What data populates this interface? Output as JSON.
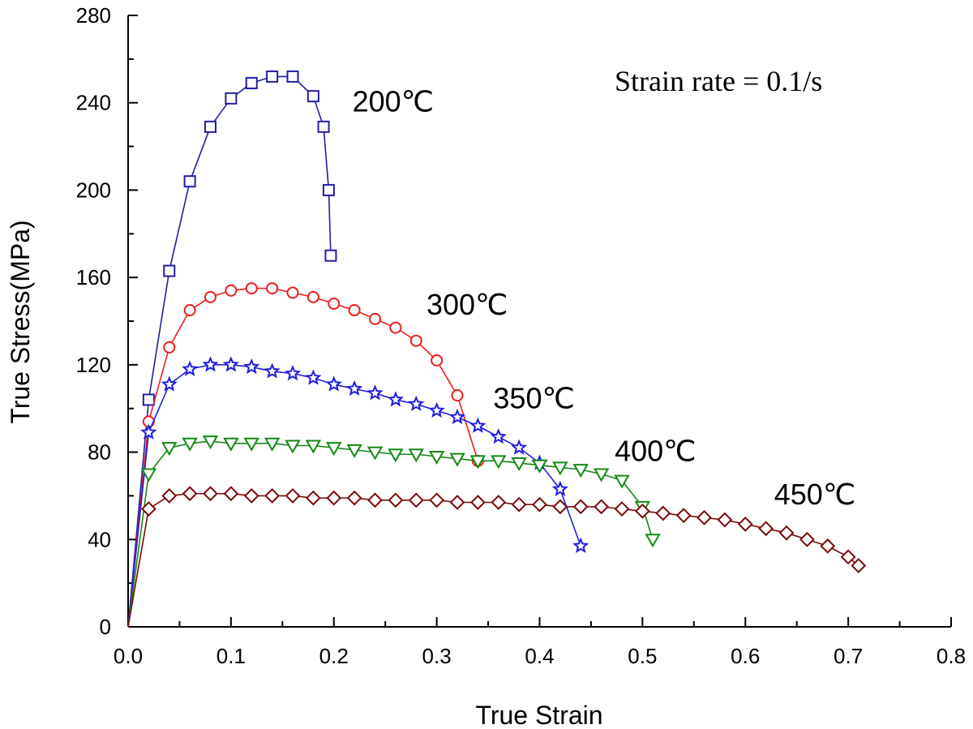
{
  "chart_data": {
    "type": "line",
    "title": "",
    "xlabel": "True Strain",
    "ylabel": "True Stress(MPa)",
    "xlim": [
      0.0,
      0.8
    ],
    "ylim": [
      0,
      280
    ],
    "x_ticks": [
      "0.0",
      "0.1",
      "0.2",
      "0.3",
      "0.4",
      "0.5",
      "0.6",
      "0.7",
      "0.8"
    ],
    "y_ticks": [
      "0",
      "40",
      "80",
      "120",
      "160",
      "200",
      "240",
      "280"
    ],
    "grid": false,
    "annotation": "Strain rate = 0.1/s",
    "series": [
      {
        "name": "200℃",
        "color": "#1f1fa0",
        "marker": "square",
        "x": [
          0.0,
          0.02,
          0.04,
          0.06,
          0.08,
          0.1,
          0.12,
          0.14,
          0.16,
          0.18,
          0.19,
          0.195,
          0.197
        ],
        "y": [
          0,
          104,
          163,
          204,
          229,
          242,
          249,
          252,
          252,
          243,
          229,
          200,
          170
        ]
      },
      {
        "name": "300℃",
        "color": "#ee1c1c",
        "marker": "circle",
        "x": [
          0.0,
          0.02,
          0.04,
          0.06,
          0.08,
          0.1,
          0.12,
          0.14,
          0.16,
          0.18,
          0.2,
          0.22,
          0.24,
          0.26,
          0.28,
          0.3,
          0.32,
          0.34
        ],
        "y": [
          0,
          94,
          128,
          145,
          151,
          154,
          155,
          155,
          153,
          151,
          148,
          145,
          141,
          137,
          131,
          122,
          106,
          76
        ]
      },
      {
        "name": "350℃",
        "color": "#1e1ee0",
        "marker": "star",
        "x": [
          0.0,
          0.02,
          0.04,
          0.06,
          0.08,
          0.1,
          0.12,
          0.14,
          0.16,
          0.18,
          0.2,
          0.22,
          0.24,
          0.26,
          0.28,
          0.3,
          0.32,
          0.34,
          0.36,
          0.38,
          0.4,
          0.42,
          0.44
        ],
        "y": [
          0,
          89,
          111,
          118,
          120,
          120,
          119,
          117,
          116,
          114,
          111,
          109,
          107,
          104,
          102,
          99,
          96,
          92,
          87,
          82,
          75,
          63,
          37
        ]
      },
      {
        "name": "400℃",
        "color": "#138a13",
        "marker": "triangle-down",
        "x": [
          0.0,
          0.02,
          0.04,
          0.06,
          0.08,
          0.1,
          0.12,
          0.14,
          0.16,
          0.18,
          0.2,
          0.22,
          0.24,
          0.26,
          0.28,
          0.3,
          0.32,
          0.34,
          0.36,
          0.38,
          0.4,
          0.42,
          0.44,
          0.46,
          0.48,
          0.5,
          0.51
        ],
        "y": [
          0,
          70,
          82,
          84,
          85,
          84,
          84,
          84,
          83,
          83,
          82,
          81,
          80,
          79,
          79,
          78,
          77,
          76,
          76,
          75,
          74,
          73,
          72,
          70,
          67,
          55,
          40
        ]
      },
      {
        "name": "450℃",
        "color": "#7a0a0a",
        "marker": "diamond",
        "x": [
          0.0,
          0.02,
          0.04,
          0.06,
          0.08,
          0.1,
          0.12,
          0.14,
          0.16,
          0.18,
          0.2,
          0.22,
          0.24,
          0.26,
          0.28,
          0.3,
          0.32,
          0.34,
          0.36,
          0.38,
          0.4,
          0.42,
          0.44,
          0.46,
          0.48,
          0.5,
          0.52,
          0.54,
          0.56,
          0.58,
          0.6,
          0.62,
          0.64,
          0.66,
          0.68,
          0.7,
          0.71
        ],
        "y": [
          0,
          54,
          60,
          61,
          61,
          61,
          60,
          60,
          60,
          59,
          59,
          59,
          58,
          58,
          58,
          58,
          57,
          57,
          57,
          56,
          56,
          55,
          55,
          55,
          54,
          53,
          52,
          51,
          50,
          49,
          47,
          45,
          43,
          40,
          37,
          32,
          28
        ]
      }
    ],
    "series_labels": [
      {
        "text": "200℃",
        "x": 0.218,
        "y": 236
      },
      {
        "text": "300℃",
        "x": 0.29,
        "y": 143
      },
      {
        "text": "350℃",
        "x": 0.355,
        "y": 100
      },
      {
        "text": "400℃",
        "x": 0.473,
        "y": 76
      },
      {
        "text": "450℃",
        "x": 0.628,
        "y": 56
      }
    ]
  }
}
